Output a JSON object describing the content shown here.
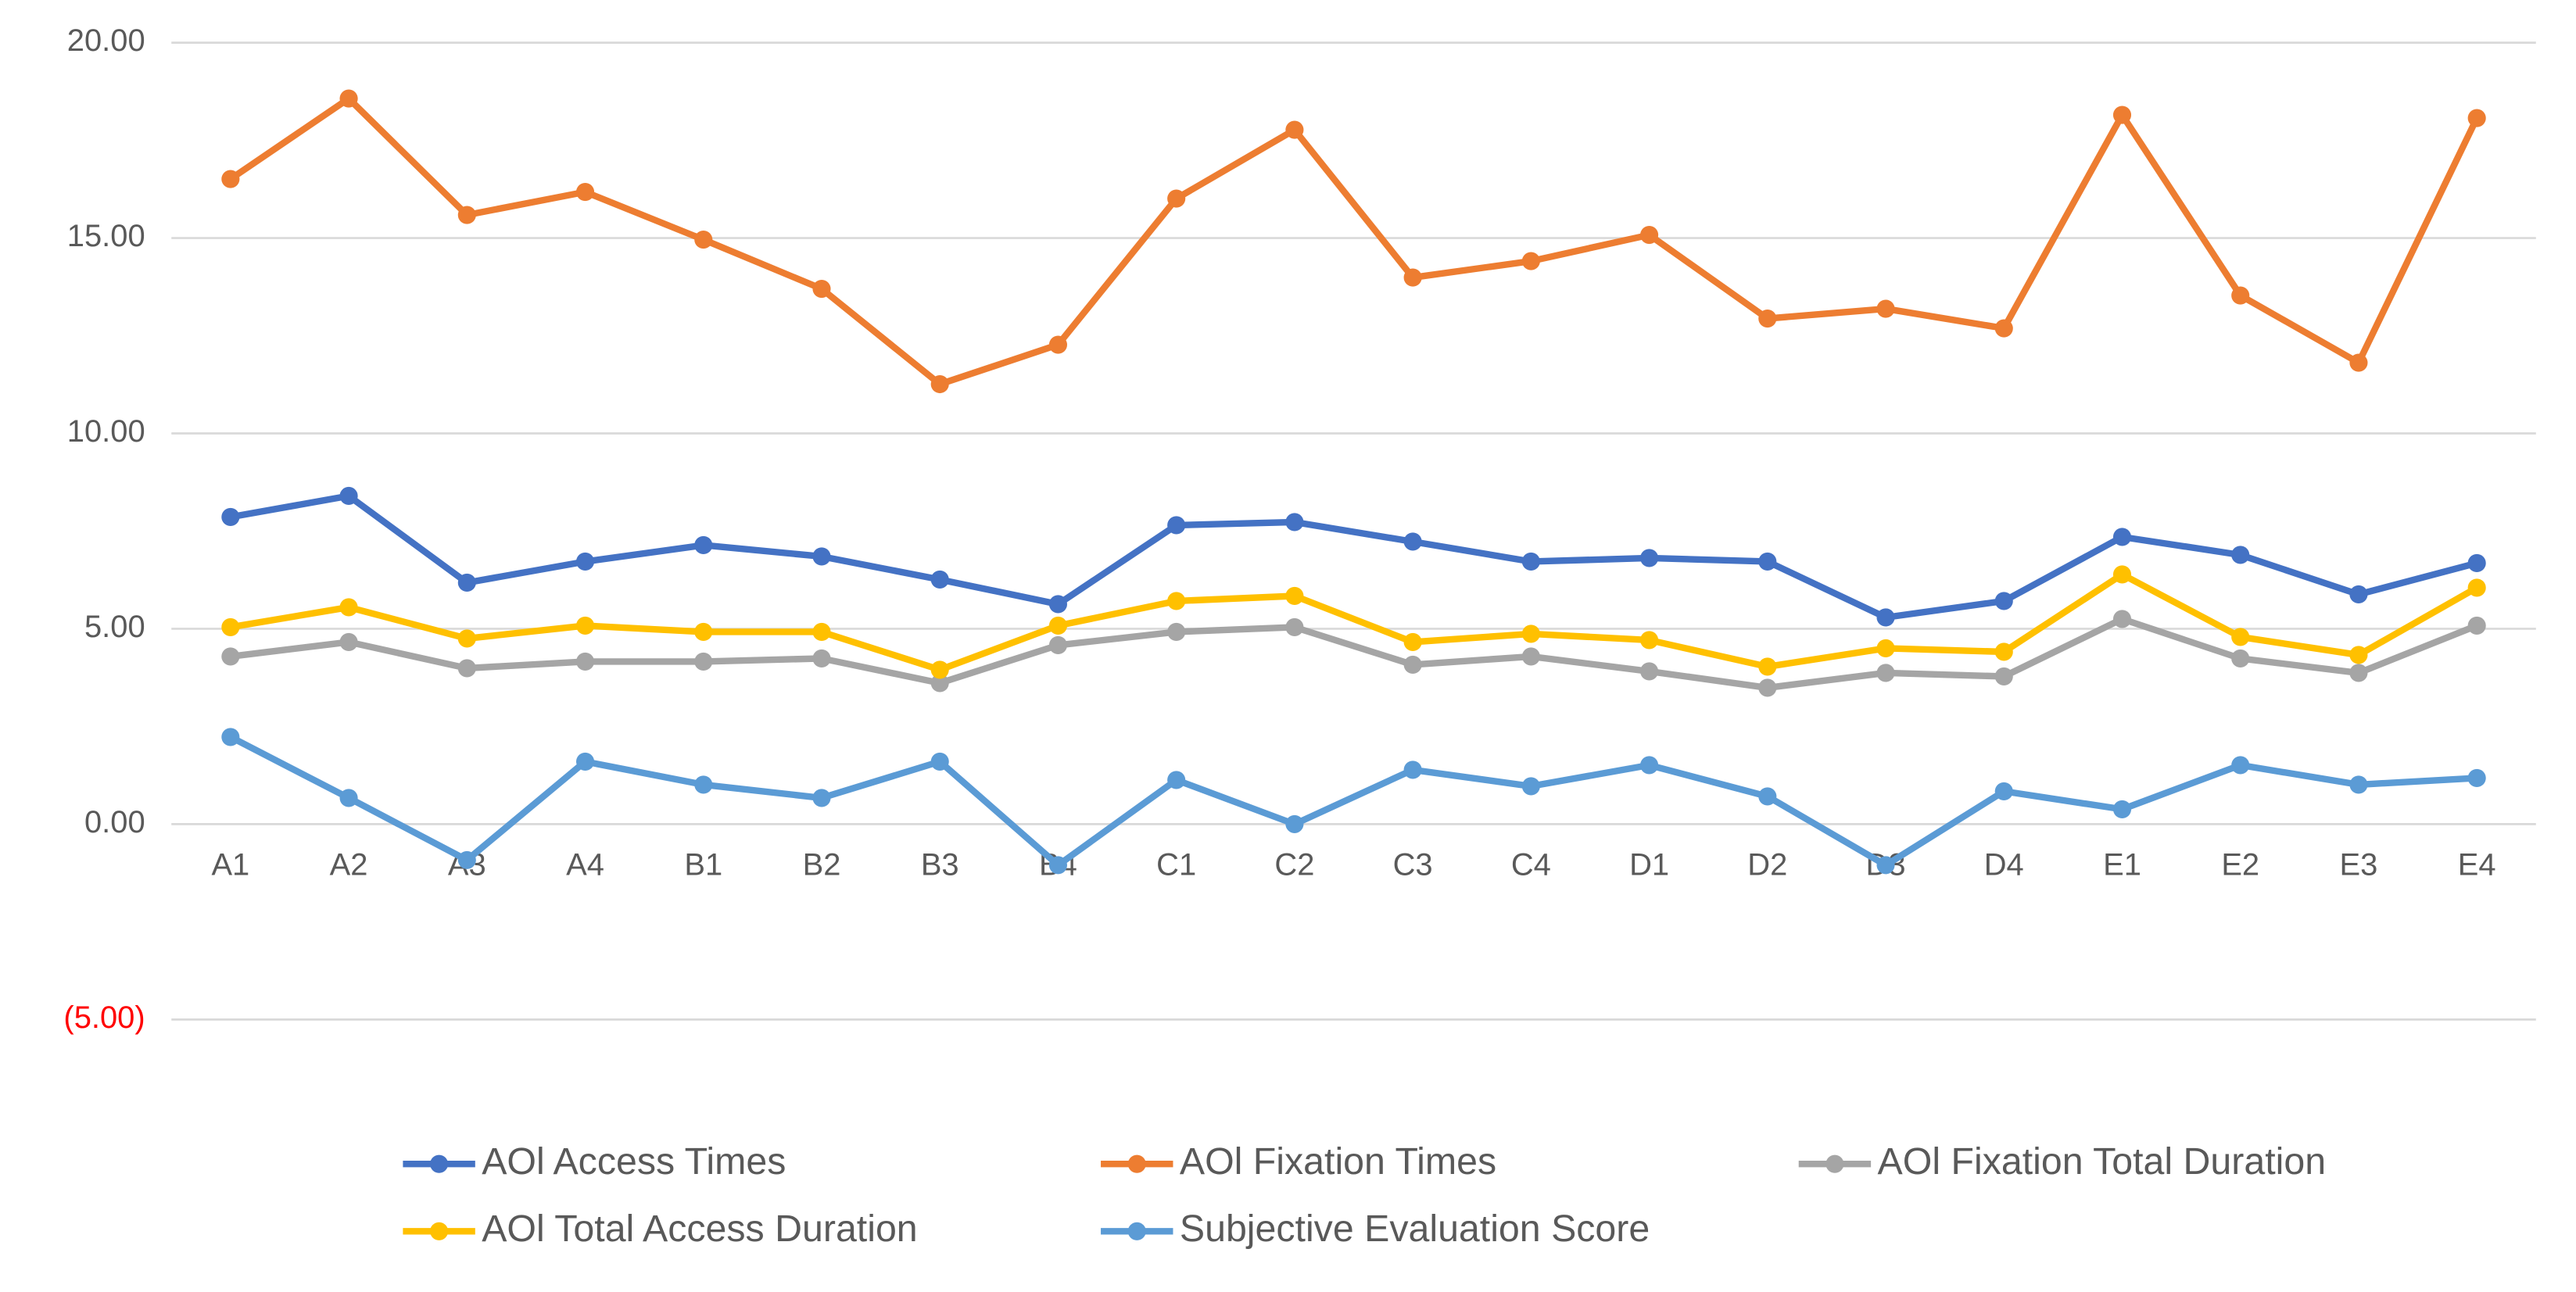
{
  "chart_data": {
    "type": "line",
    "categories": [
      "A1",
      "A2",
      "A3",
      "A4",
      "B1",
      "B2",
      "B3",
      "B4",
      "C1",
      "C2",
      "C3",
      "C4",
      "D1",
      "D2",
      "D3",
      "D4",
      "E1",
      "E2",
      "E3",
      "E4"
    ],
    "series": [
      {
        "name": "AOl Access Times",
        "color": "#4472c4",
        "values": [
          7.86,
          8.4,
          6.18,
          6.72,
          7.14,
          6.85,
          6.26,
          5.63,
          7.65,
          7.73,
          7.23,
          6.72,
          6.81,
          6.72,
          5.29,
          5.71,
          7.35,
          6.89,
          5.88,
          6.68
        ]
      },
      {
        "name": "AOl Fixation Times",
        "color": "#ed7d31",
        "values": [
          16.51,
          18.57,
          15.59,
          16.18,
          14.96,
          13.7,
          11.26,
          12.27,
          16.01,
          17.77,
          13.99,
          14.41,
          15.08,
          12.94,
          13.19,
          12.69,
          18.15,
          13.53,
          11.81,
          18.07
        ]
      },
      {
        "name": "AOl Fixation Total Duration",
        "color": "#a5a5a5",
        "values": [
          4.29,
          4.66,
          3.99,
          4.16,
          4.16,
          4.24,
          3.61,
          4.58,
          4.92,
          5.04,
          4.08,
          4.29,
          3.91,
          3.49,
          3.87,
          3.78,
          5.25,
          4.24,
          3.87,
          5.08
        ]
      },
      {
        "name": "AOl Total Access Duration",
        "color": "#ffc000",
        "values": [
          5.04,
          5.55,
          4.75,
          5.08,
          4.92,
          4.92,
          3.95,
          5.08,
          5.71,
          5.84,
          4.66,
          4.87,
          4.71,
          4.03,
          4.5,
          4.41,
          6.39,
          4.79,
          4.33,
          6.05
        ]
      },
      {
        "name": "Subjective Evaluation Score",
        "color": "#5b9bd5",
        "values": [
          2.23,
          0.67,
          -0.92,
          1.6,
          1.01,
          0.67,
          1.6,
          -1.05,
          1.13,
          0,
          1.39,
          0.97,
          1.51,
          0.71,
          -1.05,
          0.84,
          0.38,
          1.51,
          1.01,
          1.18
        ]
      }
    ],
    "ylim": [
      -5,
      20
    ],
    "yticks": [
      {
        "value": -5,
        "label": "(5.00)"
      },
      {
        "value": 0,
        "label": "0.00"
      },
      {
        "value": 5,
        "label": "5.00"
      },
      {
        "value": 10,
        "label": "10.00"
      },
      {
        "value": 15,
        "label": "15.00"
      },
      {
        "value": 20,
        "label": "20.00"
      }
    ],
    "negative_tick_color": "#ff0000",
    "grid": true,
    "legend": "bottom"
  }
}
